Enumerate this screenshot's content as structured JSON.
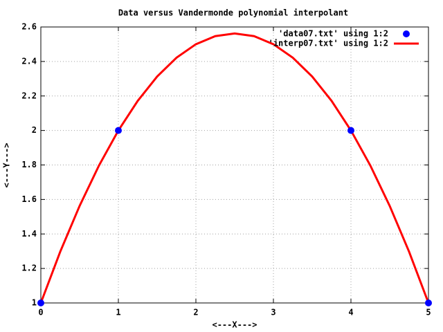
{
  "chart_data": {
    "type": "line",
    "title": "Data versus Vandermonde polynomial interpolant",
    "x_label": "<---X--->",
    "y_label": "<---Y--->",
    "xlim": [
      0,
      5
    ],
    "xticks": [
      0,
      1,
      2,
      3,
      4,
      5
    ],
    "ylim": [
      1,
      2.6
    ],
    "yticks": [
      1,
      1.2,
      1.4,
      1.6,
      1.8,
      2,
      2.2,
      2.4,
      2.6
    ],
    "grid": true,
    "legend": "top-right",
    "series": [
      {
        "name": "'data07.txt' using 1:2",
        "color": "#0000ff",
        "style": "points",
        "x": [
          0,
          1,
          4,
          5
        ],
        "values": [
          1,
          2,
          2,
          1
        ]
      },
      {
        "name": "'interp07.txt' using 1:2",
        "color": "#ff0000",
        "style": "lines",
        "x": [
          0,
          0.25,
          0.5,
          0.75,
          1,
          1.25,
          1.5,
          1.75,
          2,
          2.25,
          2.5,
          2.75,
          3,
          3.25,
          3.5,
          3.75,
          4,
          4.25,
          4.5,
          4.75,
          5
        ],
        "values": [
          1,
          1.296875,
          1.5625,
          1.796875,
          2,
          2.171875,
          2.3125,
          2.421875,
          2.5,
          2.546875,
          2.5625,
          2.546875,
          2.5,
          2.421875,
          2.3125,
          2.171875,
          2,
          1.796875,
          1.5625,
          1.296875,
          1
        ]
      }
    ]
  }
}
